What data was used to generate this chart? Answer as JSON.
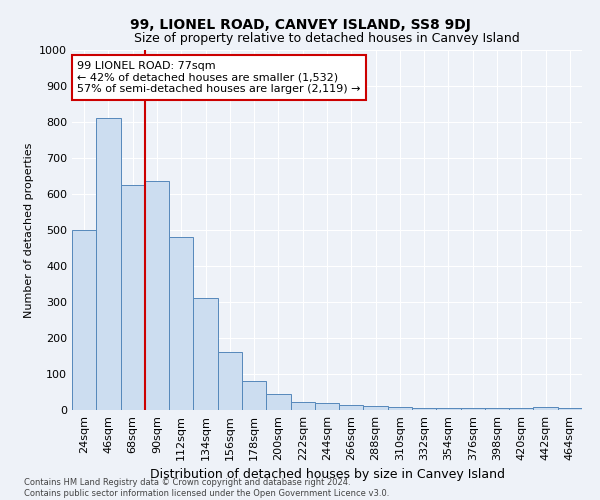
{
  "title": "99, LIONEL ROAD, CANVEY ISLAND, SS8 9DJ",
  "subtitle": "Size of property relative to detached houses in Canvey Island",
  "xlabel": "Distribution of detached houses by size in Canvey Island",
  "ylabel": "Number of detached properties",
  "categories": [
    "24sqm",
    "46sqm",
    "68sqm",
    "90sqm",
    "112sqm",
    "134sqm",
    "156sqm",
    "178sqm",
    "200sqm",
    "222sqm",
    "244sqm",
    "266sqm",
    "288sqm",
    "310sqm",
    "332sqm",
    "354sqm",
    "376sqm",
    "398sqm",
    "420sqm",
    "442sqm",
    "464sqm"
  ],
  "values": [
    500,
    810,
    625,
    635,
    480,
    310,
    160,
    80,
    45,
    22,
    20,
    15,
    10,
    8,
    6,
    5,
    5,
    5,
    5,
    8,
    5
  ],
  "bar_color": "#ccddf0",
  "bar_edge_color": "#5588bb",
  "ylim": [
    0,
    1000
  ],
  "yticks": [
    0,
    100,
    200,
    300,
    400,
    500,
    600,
    700,
    800,
    900,
    1000
  ],
  "annotation_text": "99 LIONEL ROAD: 77sqm\n← 42% of detached houses are smaller (1,532)\n57% of semi-detached houses are larger (2,119) →",
  "annotation_box_facecolor": "#ffffff",
  "annotation_box_edgecolor": "#cc0000",
  "vline_x_index": 2.5,
  "vline_color": "#cc0000",
  "footer_line1": "Contains HM Land Registry data © Crown copyright and database right 2024.",
  "footer_line2": "Contains public sector information licensed under the Open Government Licence v3.0.",
  "background_color": "#eef2f8",
  "grid_color": "#ffffff",
  "title_fontsize": 10,
  "subtitle_fontsize": 9,
  "ylabel_fontsize": 8,
  "xlabel_fontsize": 9,
  "tick_fontsize": 8,
  "annot_fontsize": 8
}
